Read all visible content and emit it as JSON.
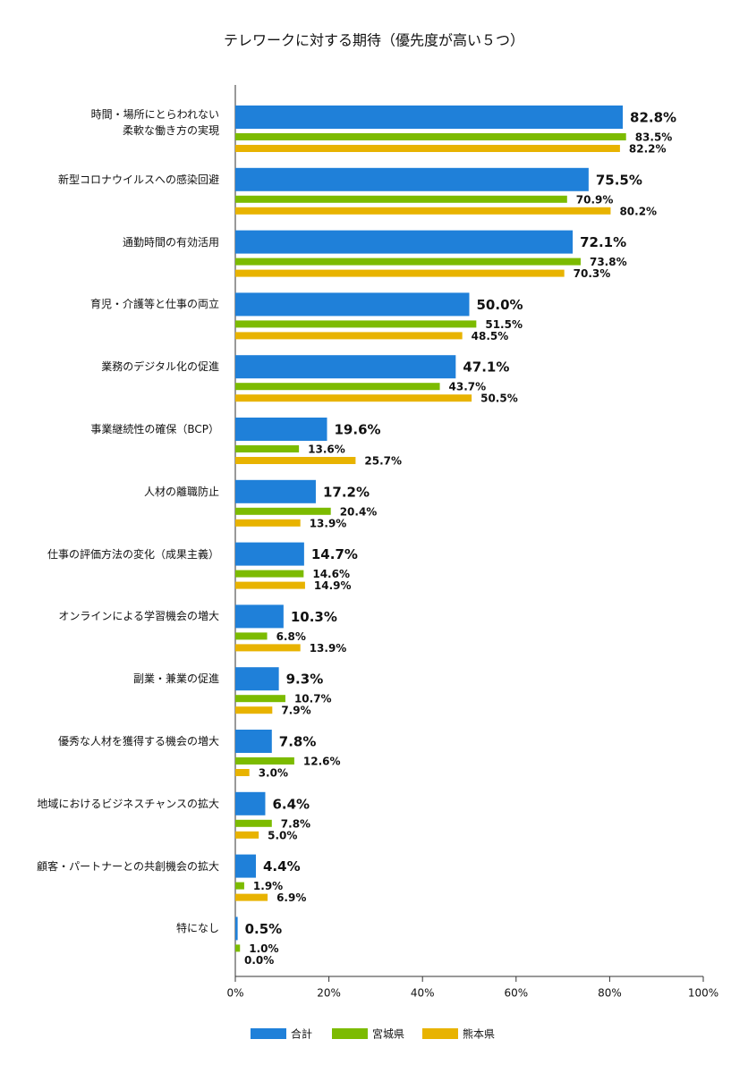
{
  "chart_data": {
    "type": "barh",
    "title": "テレワークに対する期待（優先度が高い５つ）",
    "categories": [
      "時間・場所にとらわれない\n柔軟な働き方の実現",
      "新型コロナウイルスへの感染回避",
      "通勤時間の有効活用",
      "育児・介護等と仕事の両立",
      "業務のデジタル化の促進",
      "事業継続性の確保（BCP）",
      "人材の離職防止",
      "仕事の評価方法の変化（成果主義）",
      "オンラインによる学習機会の増大",
      "副業・兼業の促進",
      "優秀な人材を獲得する機会の増大",
      "地域におけるビジネスチャンスの拡大",
      "顧客・パートナーとの共創機会の拡大",
      "特になし"
    ],
    "series": [
      {
        "name": "合計",
        "color": "#1f80d9",
        "values": [
          82.8,
          75.5,
          72.1,
          50.0,
          47.1,
          19.6,
          17.2,
          14.7,
          10.3,
          9.3,
          7.8,
          6.4,
          4.4,
          0.5
        ],
        "value_labels": [
          "82.8%",
          "75.5%",
          "72.1%",
          "50.0%",
          "47.1%",
          "19.6%",
          "17.2%",
          "14.7%",
          "10.3%",
          "9.3%",
          "7.8%",
          "6.4%",
          "4.4%",
          "0.5%"
        ]
      },
      {
        "name": "宮城県",
        "color": "#7cbb00",
        "values": [
          83.5,
          70.9,
          73.8,
          51.5,
          43.7,
          13.6,
          20.4,
          14.6,
          6.8,
          10.7,
          12.6,
          7.8,
          1.9,
          1.0
        ],
        "value_labels": [
          "83.5%",
          "70.9%",
          "73.8%",
          "51.5%",
          "43.7%",
          "13.6%",
          "20.4%",
          "14.6%",
          "6.8%",
          "10.7%",
          "12.6%",
          "7.8%",
          "1.9%",
          "1.0%"
        ]
      },
      {
        "name": "熊本県",
        "color": "#e8b300",
        "values": [
          82.2,
          80.2,
          70.3,
          48.5,
          50.5,
          25.7,
          13.9,
          14.9,
          13.9,
          7.9,
          3.0,
          5.0,
          6.9,
          0.0
        ],
        "value_labels": [
          "82.2%",
          "80.2%",
          "70.3%",
          "48.5%",
          "50.5%",
          "25.7%",
          "13.9%",
          "14.9%",
          "13.9%",
          "7.9%",
          "3.0%",
          "5.0%",
          "6.9%",
          "0.0%"
        ]
      }
    ],
    "xlim": [
      0,
      100
    ],
    "xticks": [
      {
        "value": 0,
        "label": "0%"
      },
      {
        "value": 20,
        "label": "20%"
      },
      {
        "value": 40,
        "label": "40%"
      },
      {
        "value": 60,
        "label": "60%"
      },
      {
        "value": 80,
        "label": "80%"
      },
      {
        "value": 100,
        "label": "100%"
      }
    ],
    "legend": "bottom"
  }
}
